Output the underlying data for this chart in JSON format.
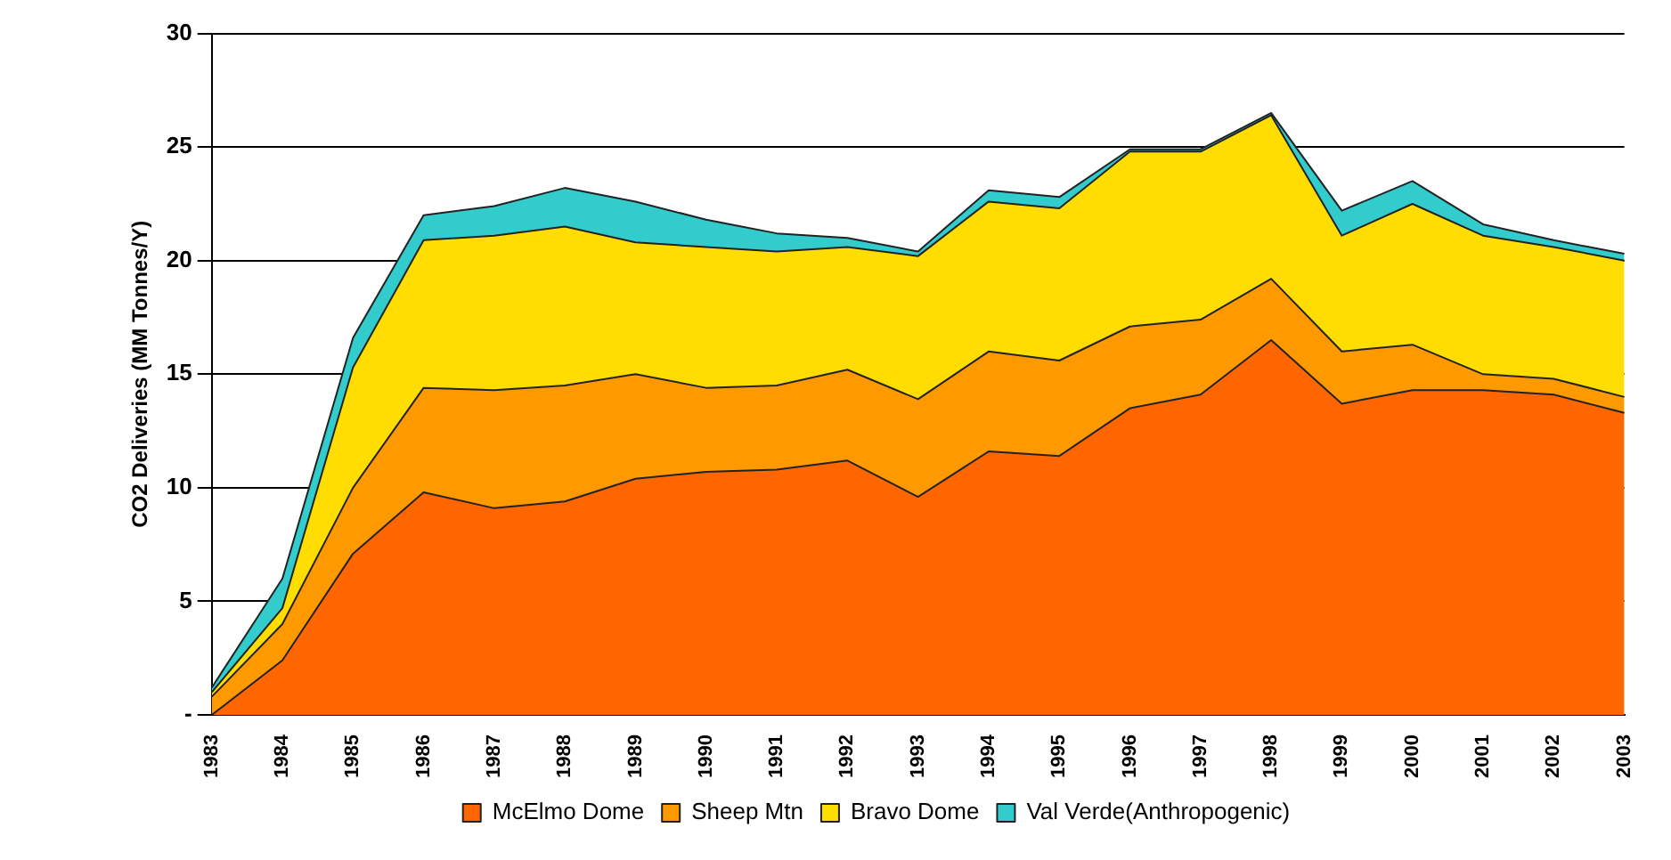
{
  "chart_data": {
    "type": "area",
    "stacked": true,
    "ylabel": "CO2 Deliveries (MM Tonnes/Y)",
    "categories": [
      "1983",
      "1984",
      "1985",
      "1986",
      "1987",
      "1988",
      "1989",
      "1990",
      "1991",
      "1992",
      "1993",
      "1994",
      "1995",
      "1996",
      "1997",
      "1998",
      "1999",
      "2000",
      "2001",
      "2002",
      "2003"
    ],
    "series": [
      {
        "name": "McElmo Dome",
        "color": "#ff6600",
        "values": [
          0,
          2.4,
          7.1,
          9.8,
          9.1,
          9.4,
          10.4,
          10.7,
          10.8,
          11.2,
          9.6,
          11.6,
          11.4,
          13.5,
          14.1,
          16.5,
          13.7,
          14.3,
          14.3,
          14.1,
          13.3
        ]
      },
      {
        "name": "Sheep Mtn",
        "color": "#ff9900",
        "values": [
          0.8,
          1.6,
          2.9,
          4.6,
          5.2,
          5.1,
          4.6,
          3.7,
          3.7,
          4.0,
          4.3,
          4.4,
          4.2,
          3.6,
          3.3,
          2.7,
          2.3,
          2.0,
          0.7,
          0.7,
          0.7
        ]
      },
      {
        "name": "Bravo Dome",
        "color": "#ffdd00",
        "values": [
          0.2,
          0.7,
          5.3,
          6.5,
          6.8,
          7.0,
          5.8,
          6.2,
          5.9,
          5.4,
          6.3,
          6.6,
          6.7,
          7.7,
          7.4,
          7.2,
          5.1,
          6.2,
          6.1,
          5.8,
          6.0
        ]
      },
      {
        "name": "Val Verde(Anthropogenic)",
        "color": "#33cccc",
        "values": [
          0.2,
          1.3,
          1.3,
          1.1,
          1.3,
          1.7,
          1.8,
          1.2,
          0.8,
          0.4,
          0.2,
          0.5,
          0.5,
          0.1,
          0.1,
          0.1,
          1.1,
          1.0,
          0.5,
          0.3,
          0.3
        ]
      }
    ],
    "ylim": [
      0,
      30
    ],
    "yticks": [
      {
        "value": 0,
        "label": "-"
      },
      5,
      10,
      15,
      20,
      25,
      30
    ],
    "grid": "y",
    "legend": "bottom",
    "marker": "none"
  }
}
